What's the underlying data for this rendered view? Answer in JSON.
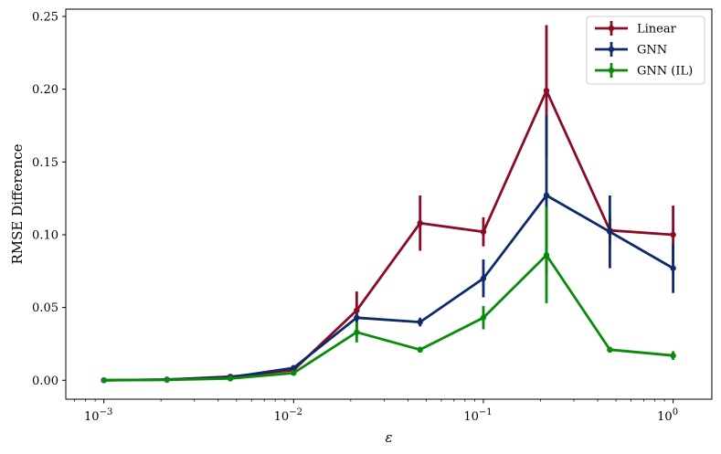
{
  "chart_data": {
    "type": "line",
    "xscale": "log",
    "x": [
      0.001,
      0.00215,
      0.00464,
      0.01,
      0.0215,
      0.0464,
      0.1,
      0.215,
      0.464,
      1.0
    ],
    "xlim": [
      0.00063,
      1.6
    ],
    "ylim": [
      -0.013,
      0.255
    ],
    "xlabel": "ε",
    "ylabel": "RMSE Difference",
    "x_ticks": [
      {
        "value": 0.001,
        "base": "10",
        "exp": "−3"
      },
      {
        "value": 0.01,
        "base": "10",
        "exp": "−2"
      },
      {
        "value": 0.1,
        "base": "10",
        "exp": "−1"
      },
      {
        "value": 1,
        "base": "10",
        "exp": "0"
      }
    ],
    "y_ticks": [
      {
        "value": 0.0,
        "label": "0.00"
      },
      {
        "value": 0.05,
        "label": "0.05"
      },
      {
        "value": 0.1,
        "label": "0.10"
      },
      {
        "value": 0.15,
        "label": "0.15"
      },
      {
        "value": 0.2,
        "label": "0.20"
      },
      {
        "value": 0.25,
        "label": "0.25"
      }
    ],
    "grid": false,
    "legend_position": "top-right",
    "series": [
      {
        "name": "Linear",
        "color": "#8b0a24",
        "values": [
          0.0,
          0.0005,
          0.0025,
          0.007,
          0.048,
          0.108,
          0.102,
          0.199,
          0.103,
          0.1
        ],
        "errors": [
          0.0005,
          0.0005,
          0.0008,
          0.002,
          0.013,
          0.019,
          0.01,
          0.045,
          0.01,
          0.02
        ]
      },
      {
        "name": "GNN",
        "color": "#0d2a6b",
        "values": [
          0.0,
          0.0005,
          0.002,
          0.0085,
          0.043,
          0.04,
          0.07,
          0.127,
          0.102,
          0.077
        ],
        "errors": [
          0.0005,
          0.0005,
          0.0006,
          0.0015,
          0.003,
          0.003,
          0.013,
          0.055,
          0.025,
          0.017
        ]
      },
      {
        "name": "GNN (IL)",
        "color": "#0a8a0a",
        "values": [
          0.0,
          0.0003,
          0.0012,
          0.005,
          0.033,
          0.021,
          0.043,
          0.086,
          0.021,
          0.017
        ],
        "errors": [
          0.0005,
          0.0005,
          0.0005,
          0.0012,
          0.007,
          0.002,
          0.008,
          0.033,
          0.002,
          0.003
        ]
      }
    ]
  }
}
